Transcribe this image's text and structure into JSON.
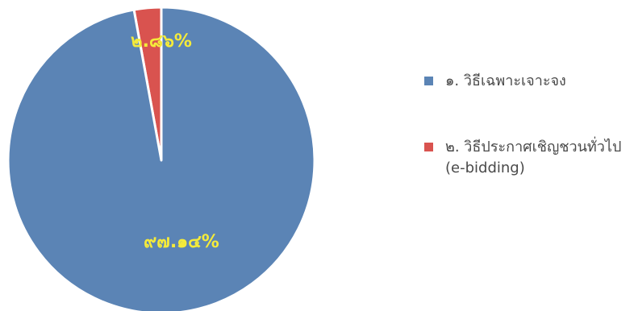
{
  "chart_data": {
    "type": "pie",
    "categories": [
      "๑. วิธีเฉพาะเจาะจง",
      "๒. วิธีประกาศเชิญชวนทั่วไป (e-bidding)"
    ],
    "values": [
      97.14,
      2.86
    ],
    "data_labels": [
      "๙๗.๑๔%",
      "๒.๘๖%"
    ],
    "colors": [
      "#5b84b5",
      "#d9534f"
    ],
    "label_color": "#f5eb3a",
    "legend_position": "right"
  },
  "legend": {
    "items": [
      {
        "label": "๑. วิธีเฉพาะเจาะจง",
        "color": "#5b84b5"
      },
      {
        "label": "๒. วิธีประกาศเชิญชวนทั่วไป (e-bidding)",
        "color": "#d9534f"
      }
    ]
  }
}
